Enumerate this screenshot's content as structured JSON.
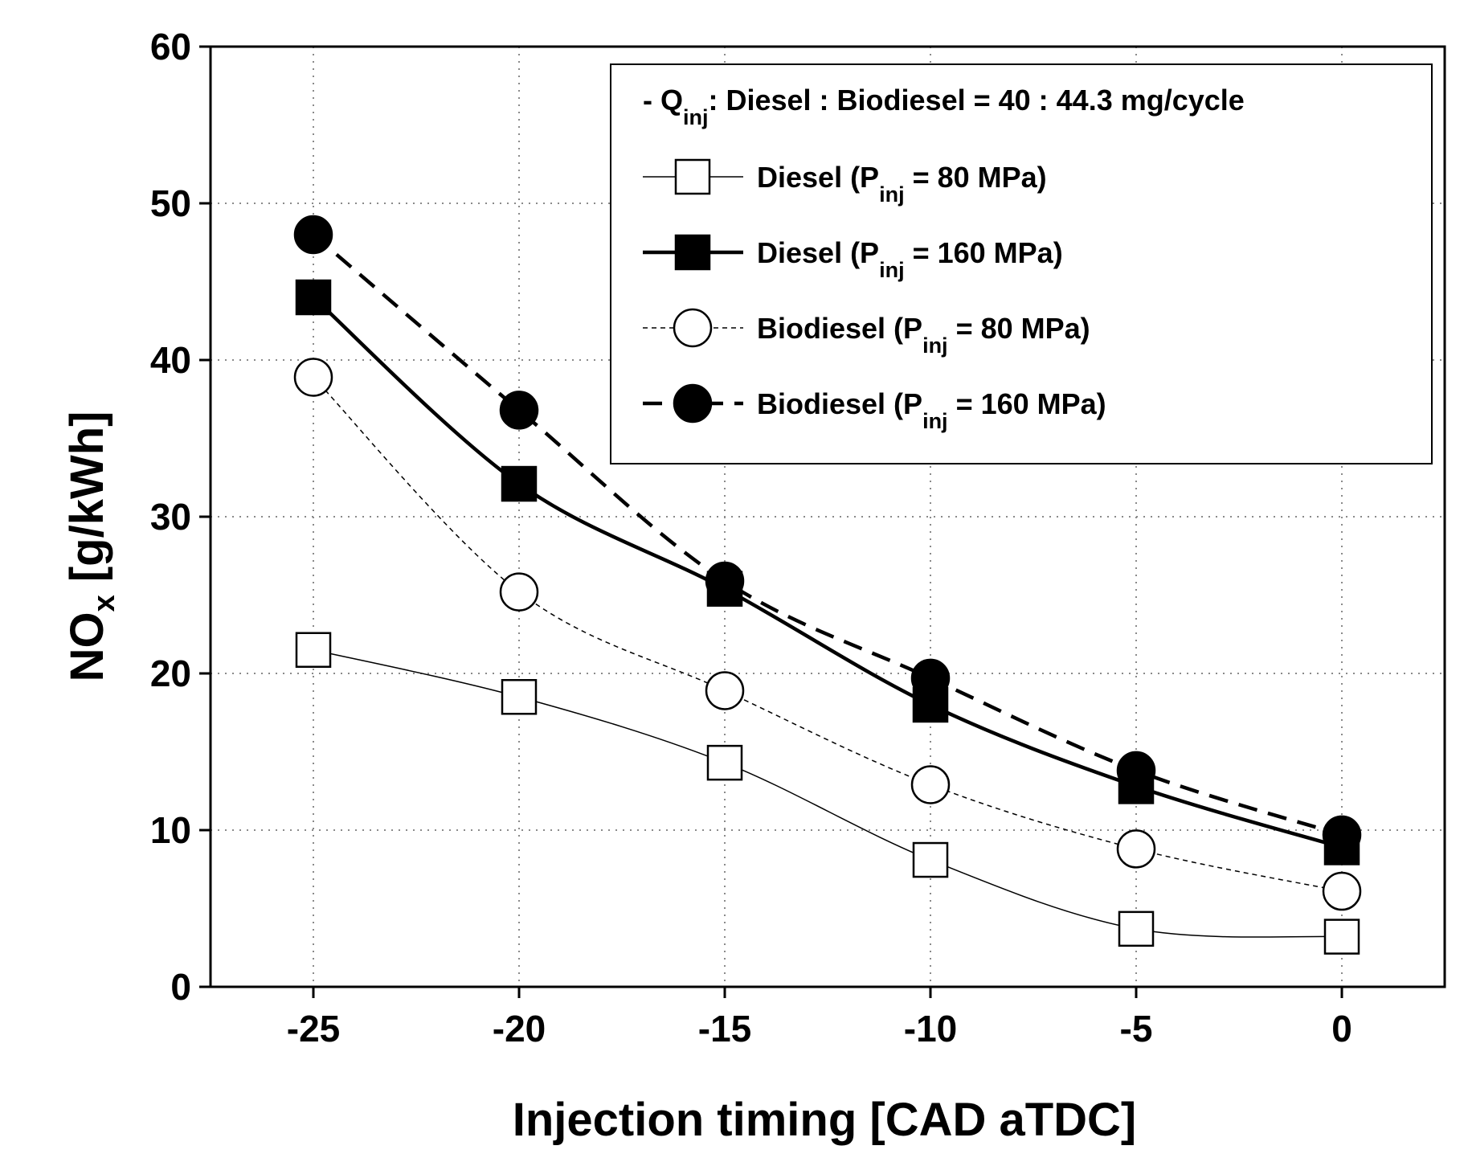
{
  "chart_data": {
    "type": "line",
    "title": "",
    "xlabel": "Injection timing [CAD aTDC]",
    "ylabel_main": "NO",
    "ylabel_sub": "x",
    "ylabel_rest": " [g/kWh]",
    "xlim": [
      -27.5,
      2.5
    ],
    "ylim": [
      0,
      60
    ],
    "xticks": [
      -25,
      -20,
      -15,
      -10,
      -5,
      0
    ],
    "yticks": [
      0,
      10,
      20,
      30,
      40,
      50,
      60
    ],
    "grid": true,
    "legend_position": "top-right",
    "legend_header": {
      "prefix": "- Q",
      "sub": "inj",
      "text": ": Diesel : Biodiesel = 40 : 44.3 mg/cycle"
    },
    "x": [
      -25,
      -20,
      -15,
      -10,
      -5,
      0
    ],
    "series": [
      {
        "name": "Diesel (Pinj = 80 MPa)",
        "label_prefix": "Diesel (P",
        "label_sub": "inj",
        "label_suffix": " = 80 MPa)",
        "marker": "square-open",
        "line": "thin-solid",
        "values": [
          21.5,
          18.5,
          14.3,
          8.1,
          3.7,
          3.2
        ]
      },
      {
        "name": "Diesel (Pinj = 160 MPa)",
        "label_prefix": "Diesel (P",
        "label_sub": "inj",
        "label_suffix": " = 160 MPa)",
        "marker": "square-filled",
        "line": "thick-solid",
        "values": [
          44.0,
          32.1,
          25.4,
          18.0,
          12.8,
          8.9
        ]
      },
      {
        "name": "Biodiesel (Pinj = 80 MPa)",
        "label_prefix": "Biodiesel (P",
        "label_sub": "inj",
        "label_suffix": " = 80 MPa)",
        "marker": "circle-open",
        "line": "thin-dotted",
        "values": [
          38.9,
          25.2,
          18.9,
          12.9,
          8.8,
          6.1
        ]
      },
      {
        "name": "Biodiesel (Pinj = 160 MPa)",
        "label_prefix": "Biodiesel (P",
        "label_sub": "inj",
        "label_suffix": " = 160 MPa)",
        "marker": "circle-filled",
        "line": "thick-dashed",
        "values": [
          48.0,
          36.8,
          25.9,
          19.7,
          13.8,
          9.7
        ]
      }
    ]
  }
}
